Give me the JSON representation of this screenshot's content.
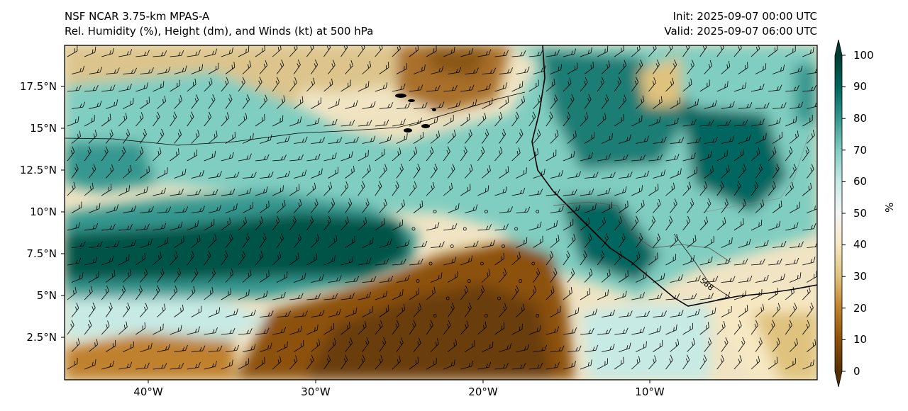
{
  "titles": {
    "left_line1": "NSF NCAR 3.75-km MPAS-A",
    "left_line2": "Rel. Humidity (%), Height (dm), and Winds (kt) at 500 hPa",
    "right_line1": "Init: 2025-09-07 00:00 UTC",
    "right_line2": "Valid: 2025-09-07 06:00 UTC"
  },
  "map": {
    "lon_range": [
      -45,
      0
    ],
    "lat_range": [
      0,
      20
    ],
    "lat_ticks": [
      "17.5°N",
      "15°N",
      "12.5°N",
      "10°N",
      "7.5°N",
      "5°N",
      "2.5°N"
    ],
    "lon_ticks": [
      "40°W",
      "30°W",
      "20°W",
      "10°W"
    ],
    "contour_label": "588",
    "colormap": "BrBG",
    "colors": {
      "dry": "#543005",
      "mid": "#f5f5f5",
      "moist": "#003c30"
    }
  },
  "colorbar": {
    "label": "%",
    "ticks": [
      "100",
      "90",
      "80",
      "70",
      "60",
      "50",
      "40",
      "30",
      "20",
      "10",
      "0"
    ],
    "range": [
      0,
      100
    ],
    "extend": "both"
  }
}
